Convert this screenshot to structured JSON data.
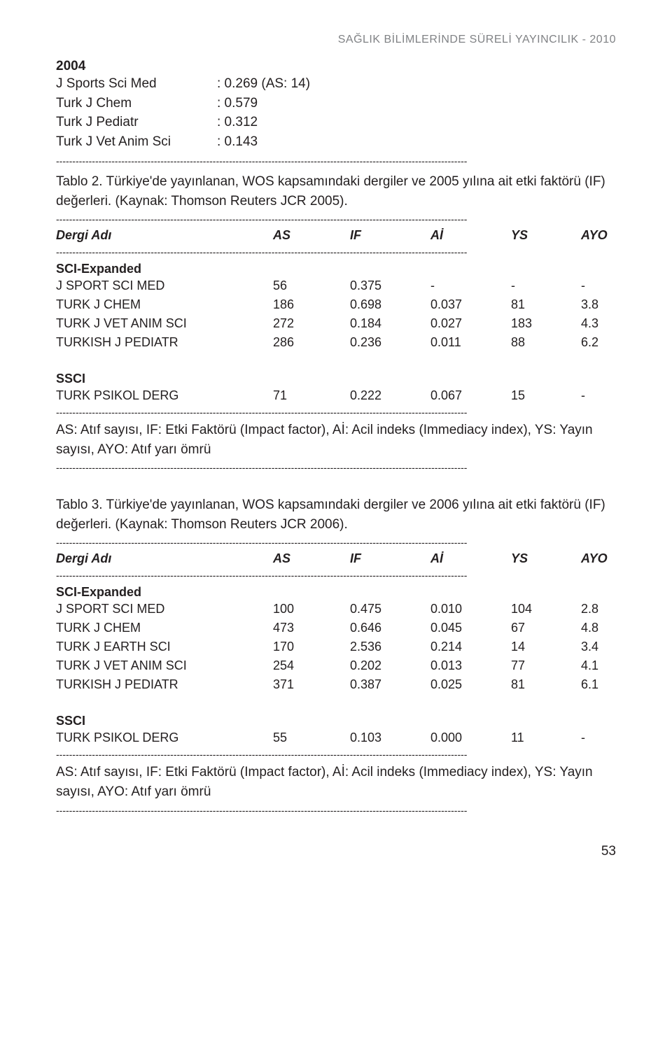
{
  "header": {
    "text": "SAĞLIK BİLİMLERİNDE SÜRELİ YAYINCILIK - 2010"
  },
  "section2004": {
    "year": "2004",
    "lines": [
      {
        "name": "J Sports Sci Med",
        "value": ": 0.269 (AS: 14)"
      },
      {
        "name": "Turk J Chem",
        "value": ": 0.579"
      },
      {
        "name": "Turk J Pediatr",
        "value": ": 0.312"
      },
      {
        "name": "Turk J Vet Anim Sci",
        "value": ": 0.143"
      }
    ]
  },
  "dash": "------------------------------------------------------------------------------------------------------------------------------",
  "tablo2": {
    "caption": "Tablo 2. Türkiye'de yayınlanan, WOS kapsamındaki dergiler ve 2005 yılına ait etki faktörü (IF) değerleri. (Kaynak: Thomson Reuters JCR 2005).",
    "headers": {
      "name": "Dergi Adı",
      "as": "AS",
      "if": "IF",
      "ai": "Aİ",
      "ys": "YS",
      "ayo": "AYO"
    },
    "sci_label": "SCI-Expanded",
    "sci_rows": [
      {
        "name": "J SPORT SCI MED",
        "as": "56",
        "if": "0.375",
        "ai": "-",
        "ys": "-",
        "ayo": "-"
      },
      {
        "name": "TURK J CHEM",
        "as": "186",
        "if": "0.698",
        "ai": "0.037",
        "ys": "81",
        "ayo": "3.8"
      },
      {
        "name": "TURK J VET ANIM SCI",
        "as": "272",
        "if": "0.184",
        "ai": "0.027",
        "ys": "183",
        "ayo": "4.3"
      },
      {
        "name": "TURKISH J PEDIATR",
        "as": "286",
        "if": "0.236",
        "ai": "0.011",
        "ys": "88",
        "ayo": "6.2"
      }
    ],
    "ssci_label": "SSCI",
    "ssci_rows": [
      {
        "name": "TURK PSIKOL DERG",
        "as": "71",
        "if": "0.222",
        "ai": "0.067",
        "ys": "15",
        "ayo": "-"
      }
    ],
    "note": "AS: Atıf sayısı, IF: Etki Faktörü (Impact factor), Aİ: Acil indeks (Immediacy index), YS: Yayın sayısı, AYO: Atıf yarı ömrü"
  },
  "tablo3": {
    "caption": "Tablo 3. Türkiye'de yayınlanan, WOS kapsamındaki dergiler ve 2006 yılına ait etki faktörü (IF) değerleri. (Kaynak: Thomson Reuters JCR 2006).",
    "headers": {
      "name": "Dergi Adı",
      "as": "AS",
      "if": "IF",
      "ai": "Aİ",
      "ys": "YS",
      "ayo": "AYO"
    },
    "sci_label": "SCI-Expanded",
    "sci_rows": [
      {
        "name": "J SPORT SCI MED",
        "as": "100",
        "if": "0.475",
        "ai": "0.010",
        "ys": "104",
        "ayo": "2.8"
      },
      {
        "name": "TURK J CHEM",
        "as": "473",
        "if": "0.646",
        "ai": "0.045",
        "ys": "67",
        "ayo": "4.8"
      },
      {
        "name": "TURK J EARTH SCI",
        "as": "170",
        "if": "2.536",
        "ai": "0.214",
        "ys": "14",
        "ayo": "3.4"
      },
      {
        "name": "TURK J VET ANIM SCI",
        "as": "254",
        "if": "0.202",
        "ai": "0.013",
        "ys": "77",
        "ayo": "4.1"
      },
      {
        "name": "TURKISH J PEDIATR",
        "as": "371",
        "if": "0.387",
        "ai": "0.025",
        "ys": "81",
        "ayo": "6.1"
      }
    ],
    "ssci_label": "SSCI",
    "ssci_rows": [
      {
        "name": "TURK PSIKOL DERG",
        "as": "55",
        "if": "0.103",
        "ai": "0.000",
        "ys": "11",
        "ayo": "-"
      }
    ],
    "note": "AS: Atıf sayısı, IF: Etki Faktörü (Impact factor), Aİ: Acil indeks (Immediacy index), YS: Yayın sayısı, AYO: Atıf yarı ömrü"
  },
  "page_number": "53"
}
